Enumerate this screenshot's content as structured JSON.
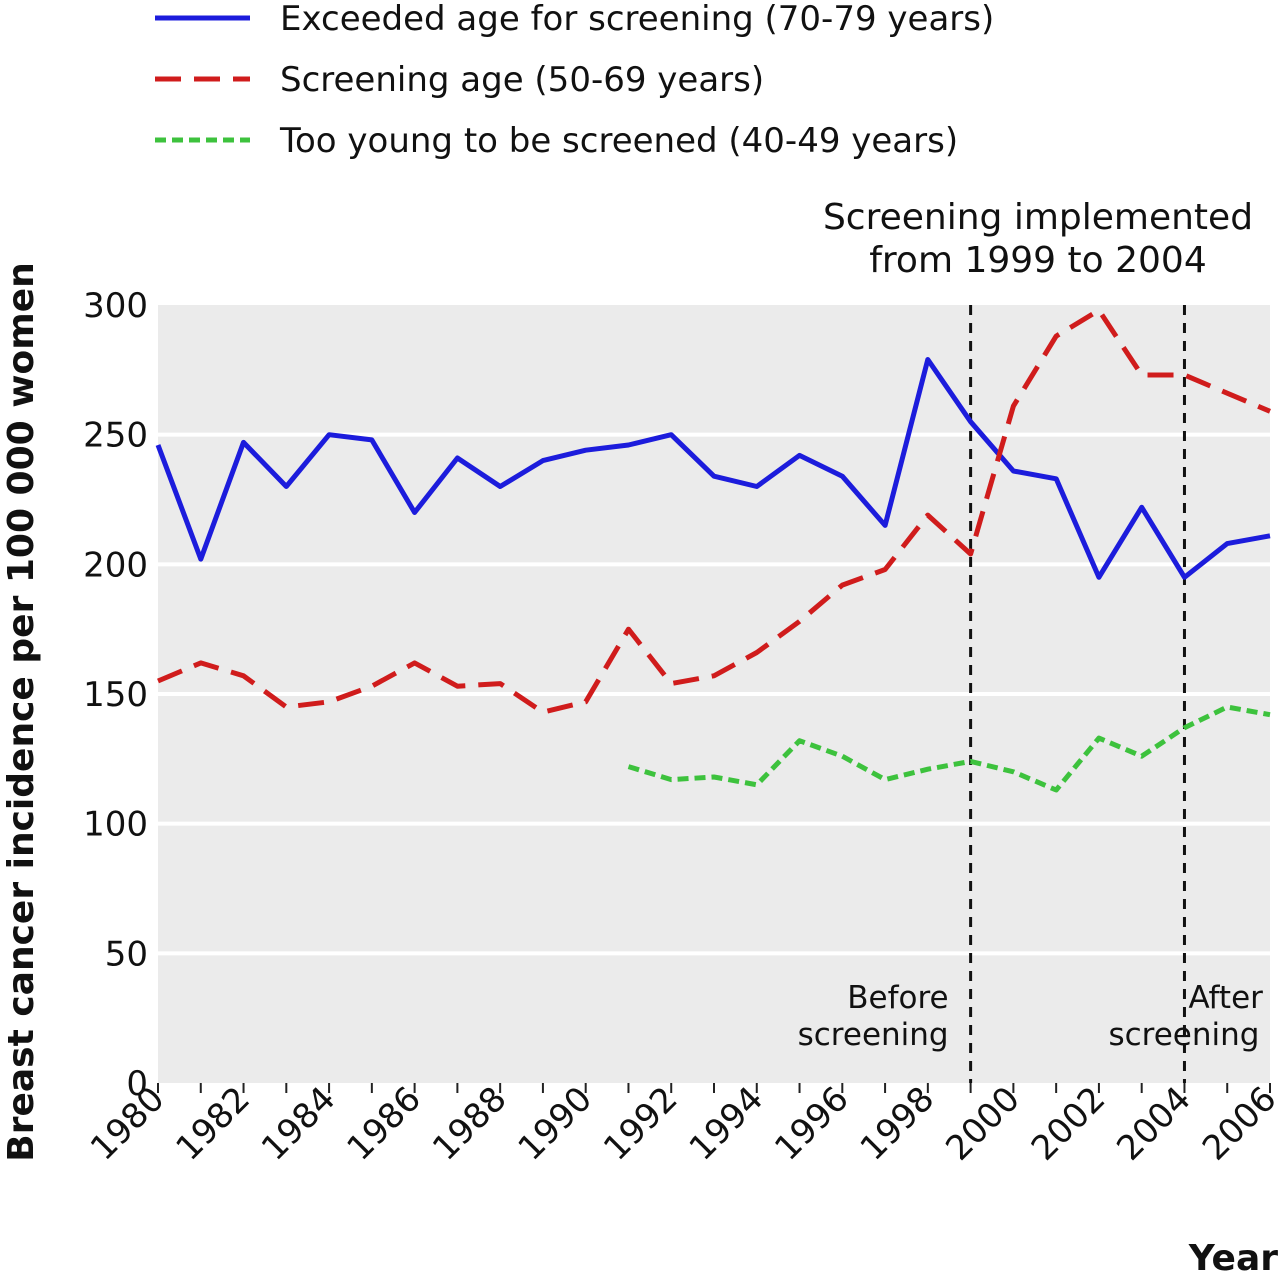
{
  "chart_data": {
    "type": "line",
    "xlabel": "Year",
    "ylabel": "Breast cancer incidence per 100 000 women",
    "xlim": [
      1980,
      2006
    ],
    "ylim": [
      0,
      300
    ],
    "yticks": [
      0,
      50,
      100,
      150,
      200,
      250,
      300
    ],
    "xticks": [
      1980,
      1982,
      1984,
      1986,
      1988,
      1990,
      1992,
      1994,
      1996,
      1998,
      2000,
      2002,
      2004,
      2006
    ],
    "grid": "horizontal",
    "legend_position": "top-left",
    "series": [
      {
        "name": "Exceeded age for screening (70-79 years)",
        "color": "#1c1cdc",
        "style": "solid",
        "x": [
          1980,
          1981,
          1982,
          1983,
          1984,
          1985,
          1986,
          1987,
          1988,
          1989,
          1990,
          1991,
          1992,
          1993,
          1994,
          1995,
          1996,
          1997,
          1998,
          1999,
          2000,
          2001,
          2002,
          2003,
          2004,
          2005,
          2006
        ],
        "y": [
          246,
          202,
          247,
          230,
          250,
          248,
          220,
          241,
          230,
          240,
          244,
          246,
          250,
          234,
          230,
          242,
          234,
          215,
          279,
          255,
          236,
          233,
          195,
          222,
          195,
          208,
          211
        ]
      },
      {
        "name": "Screening age (50-69 years)",
        "color": "#d01c1c",
        "style": "dashed",
        "x": [
          1980,
          1981,
          1982,
          1983,
          1984,
          1985,
          1986,
          1987,
          1988,
          1989,
          1990,
          1991,
          1992,
          1993,
          1994,
          1995,
          1996,
          1997,
          1998,
          1999,
          2000,
          2001,
          2002,
          2003,
          2004,
          2005,
          2006
        ],
        "y": [
          155,
          162,
          157,
          145,
          147,
          153,
          162,
          153,
          154,
          143,
          147,
          175,
          154,
          157,
          166,
          178,
          192,
          198,
          219,
          204,
          261,
          288,
          298,
          273,
          273,
          266,
          259
        ]
      },
      {
        "name": "Too young to be screened (40-49 years)",
        "color": "#3dc23d",
        "style": "dotted",
        "x": [
          1991,
          1992,
          1993,
          1994,
          1995,
          1996,
          1997,
          1998,
          1999,
          2000,
          2001,
          2002,
          2003,
          2004,
          2005,
          2006
        ],
        "y": [
          122,
          117,
          118,
          115,
          132,
          126,
          117,
          121,
          124,
          120,
          113,
          133,
          126,
          137,
          145,
          142
        ]
      }
    ],
    "markers": [
      {
        "x": 1999,
        "label_lines": [
          "Before",
          "screening"
        ]
      },
      {
        "x": 2004,
        "label_lines": [
          "After",
          "screening"
        ]
      }
    ],
    "annotation_lines": [
      "Screening implemented",
      "from 1999 to 2004"
    ]
  }
}
